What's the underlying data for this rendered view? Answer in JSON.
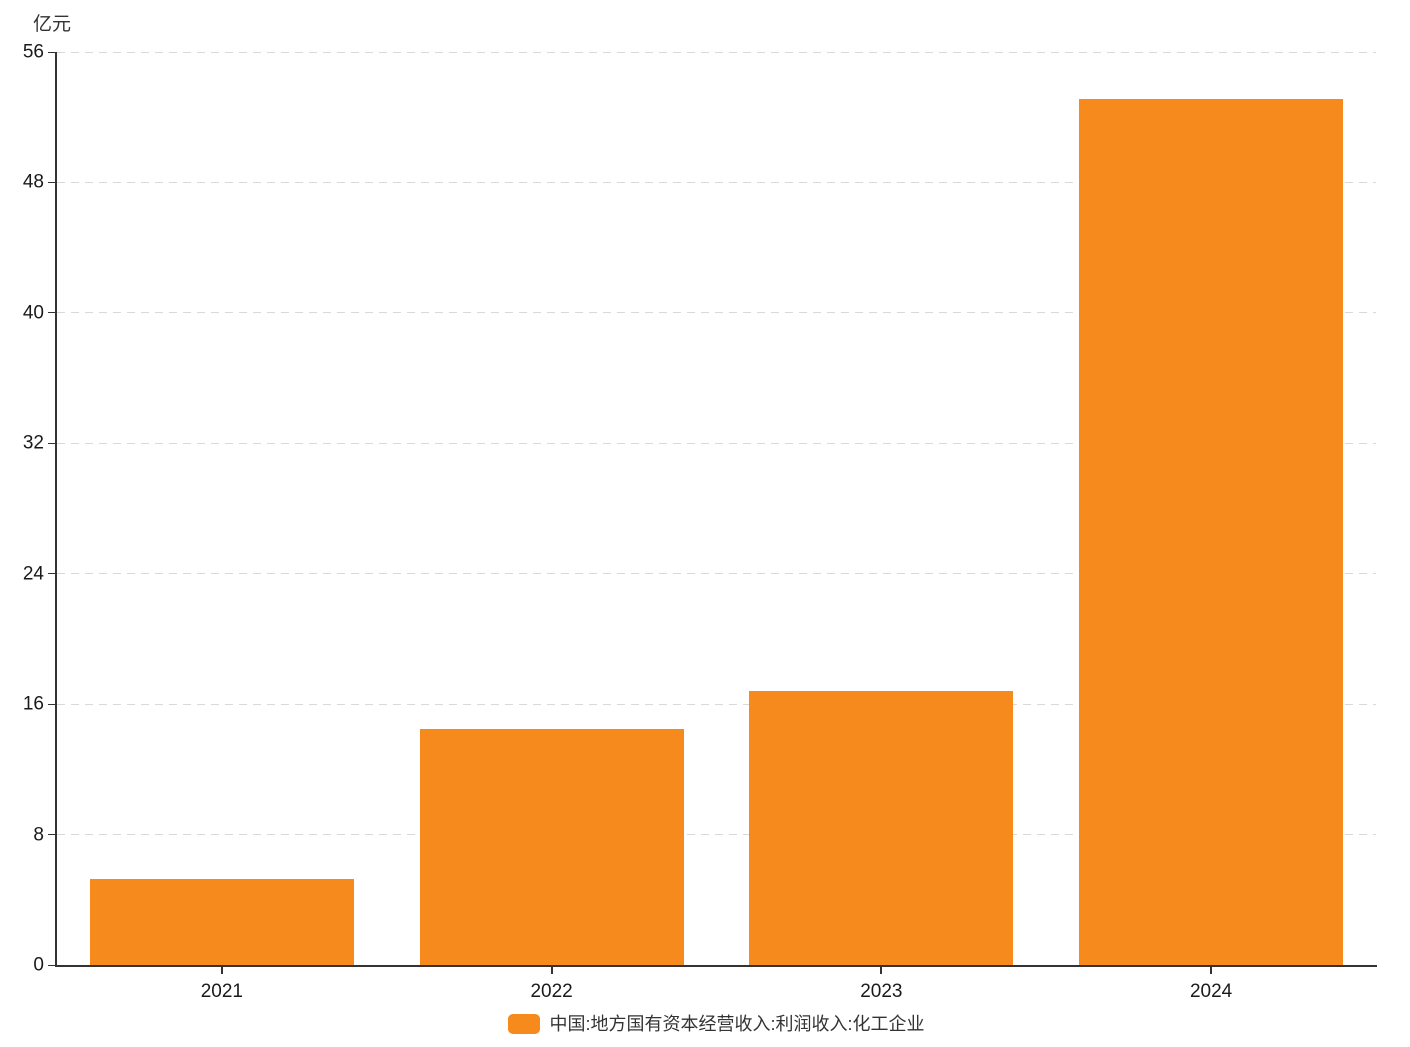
{
  "chart_data": {
    "type": "bar",
    "title": "",
    "unit_label": "亿元",
    "categories": [
      "2021",
      "2022",
      "2023",
      "2024"
    ],
    "series": [
      {
        "name": "中国:地方国有资本经营收入:利润收入:化工企业",
        "values": [
          5.3,
          14.5,
          16.8,
          53.1
        ]
      }
    ],
    "ylim": [
      0,
      56
    ],
    "yticks": [
      0,
      8,
      16,
      24,
      32,
      40,
      48,
      56
    ],
    "xlabel": "",
    "ylabel": "亿元",
    "grid": true,
    "grid_style": "dashed",
    "legend_position": "bottom",
    "bar_color": "#F68A1D",
    "bar_width_ratio": 0.8
  }
}
